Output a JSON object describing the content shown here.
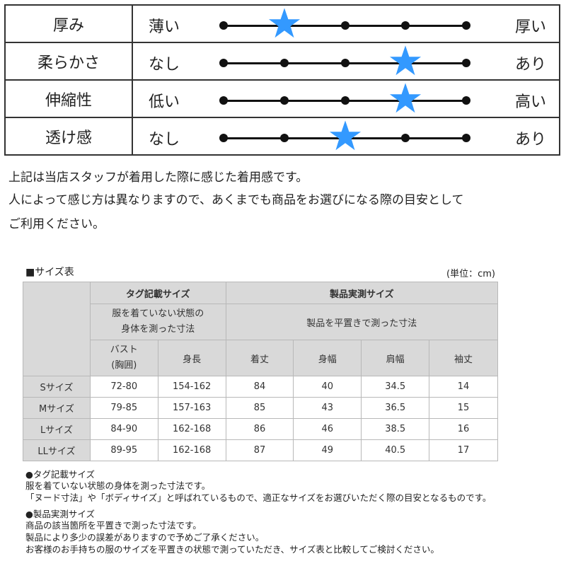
{
  "feel": {
    "rows": [
      {
        "label": "厚み",
        "left": "薄い",
        "right": "厚い",
        "level": 2,
        "max": 5
      },
      {
        "label": "柔らかさ",
        "left": "なし",
        "right": "あり",
        "level": 4,
        "max": 5
      },
      {
        "label": "伸縮性",
        "left": "低い",
        "right": "高い",
        "level": 4,
        "max": 5
      },
      {
        "label": "透け感",
        "left": "なし",
        "right": "あり",
        "level": 3,
        "max": 5
      }
    ],
    "star_color": "#3399ff"
  },
  "notes": {
    "line1": "上記は当店スタッフが着用した際に感じた着用感です。",
    "line2": "人によって感じ方は異なりますので、あくまでも商品をお選びになる際の目安として",
    "line3": "ご利用ください。"
  },
  "size_table": {
    "caption": "■サイズ表",
    "unit": "(単位：cm)",
    "group_tag": "タグ記載サイズ",
    "group_tag_desc_1": "服を着ていない状態の",
    "group_tag_desc_2": "身体を測った寸法",
    "group_product": "製品実測サイズ",
    "group_product_desc": "製品を平置きで測った寸法",
    "col_bust_1": "バスト",
    "col_bust_2": "(胸囲)",
    "col_height": "身長",
    "col_length": "着丈",
    "col_width": "身幅",
    "col_shoulder": "肩幅",
    "col_sleeve": "袖丈",
    "rows": [
      {
        "size": "Sサイズ",
        "bust": "72-80",
        "height": "154-162",
        "length": "84",
        "width": "40",
        "shoulder": "34.5",
        "sleeve": "14"
      },
      {
        "size": "Mサイズ",
        "bust": "79-85",
        "height": "157-163",
        "length": "85",
        "width": "43",
        "shoulder": "36.5",
        "sleeve": "15"
      },
      {
        "size": "Lサイズ",
        "bust": "84-90",
        "height": "162-168",
        "length": "86",
        "width": "46",
        "shoulder": "38.5",
        "sleeve": "16"
      },
      {
        "size": "LLサイズ",
        "bust": "89-95",
        "height": "162-168",
        "length": "87",
        "width": "49",
        "shoulder": "40.5",
        "sleeve": "17"
      }
    ]
  },
  "footnotes": {
    "tag_title": "●タグ記載サイズ",
    "tag_line1": "服を着ていない状態の身体を測った寸法です。",
    "tag_line2": "「ヌード寸法」や「ボディサイズ」と呼ばれているもので、適正なサイズをお選びいただく際の目安となるものです。",
    "product_title": "●製品実測サイズ",
    "product_line1": "商品の該当箇所を平置きで測った寸法です。",
    "product_line2": "製品により多少の誤差がありますので予めご了承ください。",
    "product_line3": "お客様のお手持ちの服のサイズを平置きの状態で測っていただき、サイズ表と比較してご検討ください。"
  }
}
